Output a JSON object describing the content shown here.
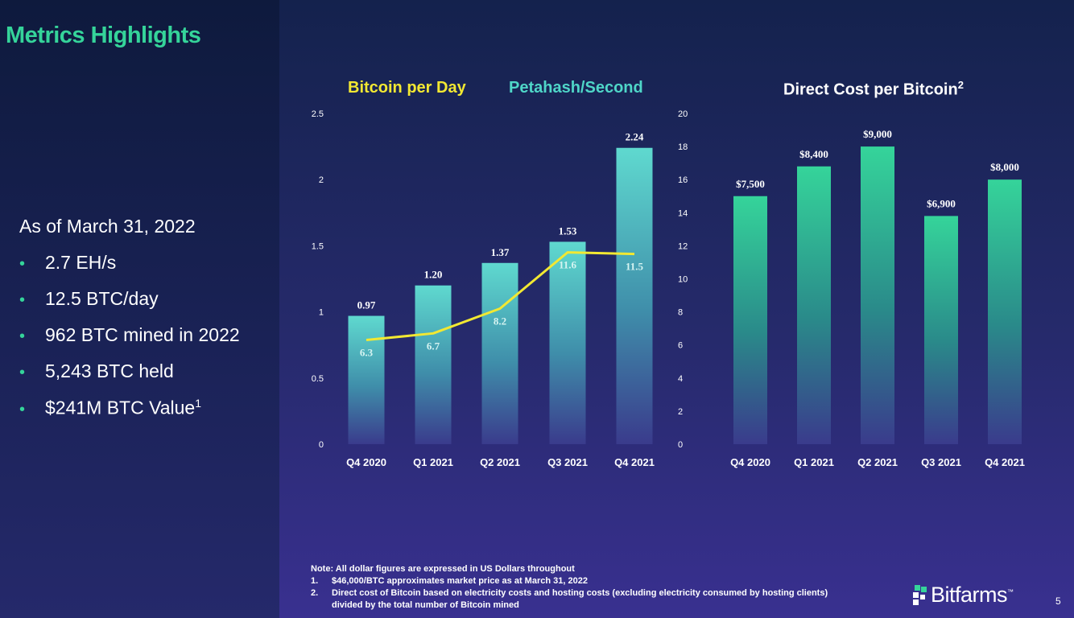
{
  "page": {
    "title": "Metrics Highlights",
    "as_of": "As of March 31, 2022",
    "bullets": [
      "2.7 EH/s",
      "12.5 BTC/day",
      "962 BTC mined in 2022",
      "5,243 BTC held",
      "$241M BTC Value"
    ],
    "bullet_superscript": "1",
    "page_number": "5"
  },
  "legend": {
    "bitcoin_per_day": "Bitcoin per Day",
    "petahash_second": "Petahash/Second",
    "direct_cost": "Direct Cost per Bitcoin",
    "direct_cost_sup": "2"
  },
  "notes": {
    "main": "Note: All dollar figures are expressed in US Dollars throughout",
    "items": [
      {
        "num": "1.",
        "text": "$46,000/BTC approximates market price as at March 31, 2022"
      },
      {
        "num": "2.",
        "text": "Direct cost of Bitcoin based on electricity costs and hosting costs (excluding electricity consumed by hosting clients)"
      },
      {
        "num": "",
        "text": "divided by the total number of Bitcoin mined"
      }
    ]
  },
  "logo": {
    "text": "Bitfarms",
    "mark": "™"
  },
  "colors": {
    "accent_green": "#35d49a",
    "line_yellow": "#f2e832",
    "bar_teal": "#5fd9cf",
    "bar_green": "#35d49a"
  },
  "chart_data": [
    {
      "type": "bar+line",
      "categories": [
        "Q4 2020",
        "Q1 2021",
        "Q2 2021",
        "Q3 2021",
        "Q4 2021"
      ],
      "series": [
        {
          "name": "Bitcoin per Day",
          "type": "bar",
          "axis": "left",
          "values": [
            0.97,
            1.2,
            1.37,
            1.53,
            2.24
          ],
          "labels": [
            "0.97",
            "1.20",
            "1.37",
            "1.53",
            "2.24"
          ]
        },
        {
          "name": "Petahash/Second",
          "type": "line",
          "axis": "right",
          "values": [
            6.3,
            6.7,
            8.2,
            11.6,
            11.5
          ],
          "labels": [
            "6.3",
            "6.7",
            "8.2",
            "11.6",
            "11.5"
          ]
        }
      ],
      "y_left": {
        "range": [
          0,
          2.5
        ],
        "ticks": [
          0,
          0.5,
          1,
          1.5,
          2,
          2.5
        ],
        "tick_labels": [
          "0",
          "0.5",
          "1",
          "1.5",
          "2",
          "2.5"
        ]
      },
      "y_right": {
        "range": [
          0,
          20
        ],
        "ticks": [
          0,
          2,
          4,
          6,
          8,
          10,
          12,
          14,
          16,
          18,
          20
        ],
        "tick_labels": [
          "0",
          "2",
          "4",
          "6",
          "8",
          "10",
          "12",
          "14",
          "16",
          "18",
          "20"
        ]
      }
    },
    {
      "type": "bar",
      "title": "Direct Cost per Bitcoin",
      "categories": [
        "Q4 2020",
        "Q1 2021",
        "Q2 2021",
        "Q3 2021",
        "Q4 2021"
      ],
      "values": [
        7500,
        8400,
        9000,
        6900,
        8000
      ],
      "labels": [
        "$7,500",
        "$8,400",
        "$9,000",
        "$6,900",
        "$8,000"
      ],
      "ylim": [
        0,
        10000
      ]
    }
  ]
}
